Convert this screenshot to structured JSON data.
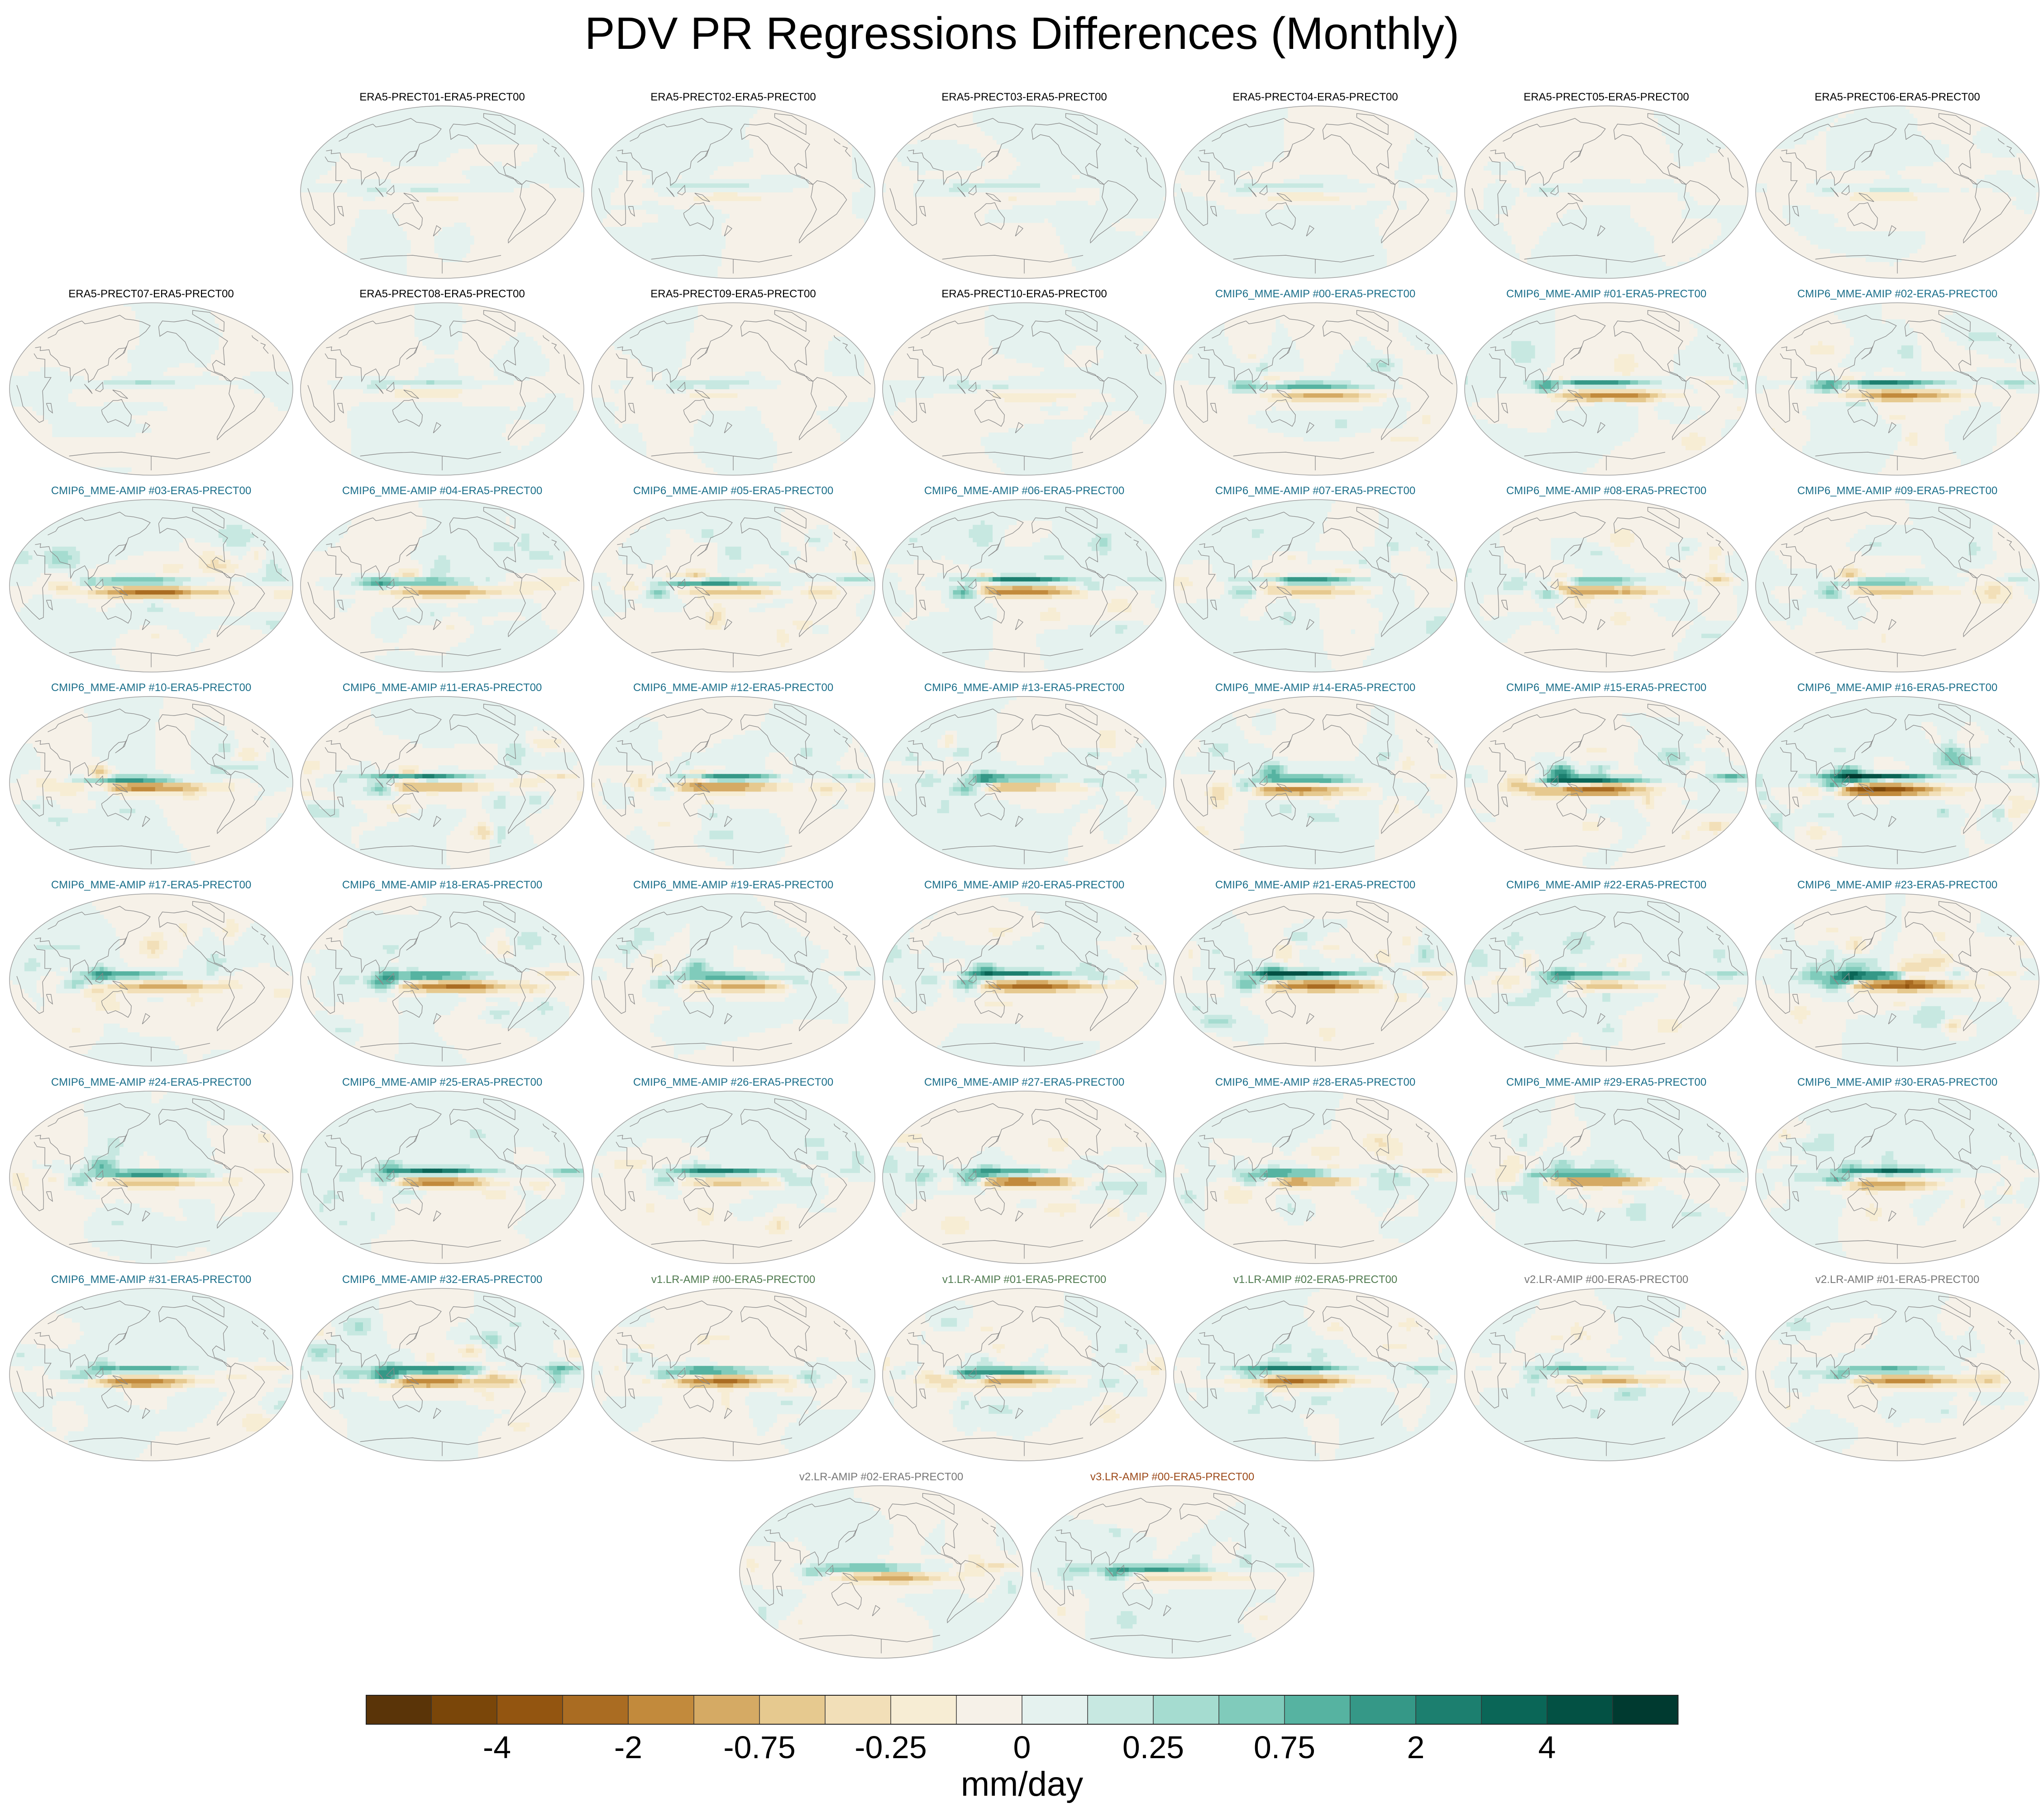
{
  "chart_data": {
    "type": "heatmap",
    "title": "PDV PR Regressions Differences (Monthly)",
    "panels": [
      {
        "label": "ERA5-PRECT01-ERA5-PRECT00",
        "group": "era5",
        "title_color": "#000000",
        "amp": 0.12
      },
      {
        "label": "ERA5-PRECT02-ERA5-PRECT00",
        "group": "era5",
        "title_color": "#000000",
        "amp": 0.12
      },
      {
        "label": "ERA5-PRECT03-ERA5-PRECT00",
        "group": "era5",
        "title_color": "#000000",
        "amp": 0.12
      },
      {
        "label": "ERA5-PRECT04-ERA5-PRECT00",
        "group": "era5",
        "title_color": "#000000",
        "amp": 0.12
      },
      {
        "label": "ERA5-PRECT05-ERA5-PRECT00",
        "group": "era5",
        "title_color": "#000000",
        "amp": 0.12
      },
      {
        "label": "ERA5-PRECT06-ERA5-PRECT00",
        "group": "era5",
        "title_color": "#000000",
        "amp": 0.12
      },
      {
        "label": "ERA5-PRECT07-ERA5-PRECT00",
        "group": "era5",
        "title_color": "#000000",
        "amp": 0.12
      },
      {
        "label": "ERA5-PRECT08-ERA5-PRECT00",
        "group": "era5",
        "title_color": "#000000",
        "amp": 0.12
      },
      {
        "label": "ERA5-PRECT09-ERA5-PRECT00",
        "group": "era5",
        "title_color": "#000000",
        "amp": 0.12
      },
      {
        "label": "ERA5-PRECT10-ERA5-PRECT00",
        "group": "era5",
        "title_color": "#000000",
        "amp": 0.12
      },
      {
        "label": "CMIP6_MME-AMIP  #00-ERA5-PRECT00",
        "group": "cmip6",
        "title_color": "#1a6e8a",
        "amp": 0.5
      },
      {
        "label": "CMIP6_MME-AMIP  #01-ERA5-PRECT00",
        "group": "cmip6",
        "title_color": "#1a6e8a",
        "amp": 0.5
      },
      {
        "label": "CMIP6_MME-AMIP  #02-ERA5-PRECT00",
        "group": "cmip6",
        "title_color": "#1a6e8a",
        "amp": 0.6
      },
      {
        "label": "CMIP6_MME-AMIP  #03-ERA5-PRECT00",
        "group": "cmip6",
        "title_color": "#1a6e8a",
        "amp": 0.6
      },
      {
        "label": "CMIP6_MME-AMIP  #04-ERA5-PRECT00",
        "group": "cmip6",
        "title_color": "#1a6e8a",
        "amp": 0.5
      },
      {
        "label": "CMIP6_MME-AMIP  #05-ERA5-PRECT00",
        "group": "cmip6",
        "title_color": "#1a6e8a",
        "amp": 0.6
      },
      {
        "label": "CMIP6_MME-AMIP  #06-ERA5-PRECT00",
        "group": "cmip6",
        "title_color": "#1a6e8a",
        "amp": 0.65
      },
      {
        "label": "CMIP6_MME-AMIP  #07-ERA5-PRECT00",
        "group": "cmip6",
        "title_color": "#1a6e8a",
        "amp": 0.5
      },
      {
        "label": "CMIP6_MME-AMIP  #08-ERA5-PRECT00",
        "group": "cmip6",
        "title_color": "#1a6e8a",
        "amp": 0.5
      },
      {
        "label": "CMIP6_MME-AMIP  #09-ERA5-PRECT00",
        "group": "cmip6",
        "title_color": "#1a6e8a",
        "amp": 0.5
      },
      {
        "label": "CMIP6_MME-AMIP  #10-ERA5-PRECT00",
        "group": "cmip6",
        "title_color": "#1a6e8a",
        "amp": 0.55
      },
      {
        "label": "CMIP6_MME-AMIP  #11-ERA5-PRECT00",
        "group": "cmip6",
        "title_color": "#1a6e8a",
        "amp": 0.6
      },
      {
        "label": "CMIP6_MME-AMIP  #12-ERA5-PRECT00",
        "group": "cmip6",
        "title_color": "#1a6e8a",
        "amp": 0.5
      },
      {
        "label": "CMIP6_MME-AMIP  #13-ERA5-PRECT00",
        "group": "cmip6",
        "title_color": "#1a6e8a",
        "amp": 0.55
      },
      {
        "label": "CMIP6_MME-AMIP  #14-ERA5-PRECT00",
        "group": "cmip6",
        "title_color": "#1a6e8a",
        "amp": 0.5
      },
      {
        "label": "CMIP6_MME-AMIP  #15-ERA5-PRECT00",
        "group": "cmip6",
        "title_color": "#1a6e8a",
        "amp": 0.9
      },
      {
        "label": "CMIP6_MME-AMIP  #16-ERA5-PRECT00",
        "group": "cmip6",
        "title_color": "#1a6e8a",
        "amp": 0.9
      },
      {
        "label": "CMIP6_MME-AMIP  #17-ERA5-PRECT00",
        "group": "cmip6",
        "title_color": "#1a6e8a",
        "amp": 0.55
      },
      {
        "label": "CMIP6_MME-AMIP  #18-ERA5-PRECT00",
        "group": "cmip6",
        "title_color": "#1a6e8a",
        "amp": 0.6
      },
      {
        "label": "CMIP6_MME-AMIP  #19-ERA5-PRECT00",
        "group": "cmip6",
        "title_color": "#1a6e8a",
        "amp": 0.5
      },
      {
        "label": "CMIP6_MME-AMIP  #20-ERA5-PRECT00",
        "group": "cmip6",
        "title_color": "#1a6e8a",
        "amp": 0.6
      },
      {
        "label": "CMIP6_MME-AMIP  #21-ERA5-PRECT00",
        "group": "cmip6",
        "title_color": "#1a6e8a",
        "amp": 0.8
      },
      {
        "label": "CMIP6_MME-AMIP  #22-ERA5-PRECT00",
        "group": "cmip6",
        "title_color": "#1a6e8a",
        "amp": 0.55
      },
      {
        "label": "CMIP6_MME-AMIP  #23-ERA5-PRECT00",
        "group": "cmip6",
        "title_color": "#1a6e8a",
        "amp": 0.8
      },
      {
        "label": "CMIP6_MME-AMIP  #24-ERA5-PRECT00",
        "group": "cmip6",
        "title_color": "#1a6e8a",
        "amp": 0.6
      },
      {
        "label": "CMIP6_MME-AMIP  #25-ERA5-PRECT00",
        "group": "cmip6",
        "title_color": "#1a6e8a",
        "amp": 0.6
      },
      {
        "label": "CMIP6_MME-AMIP  #26-ERA5-PRECT00",
        "group": "cmip6",
        "title_color": "#1a6e8a",
        "amp": 0.5
      },
      {
        "label": "CMIP6_MME-AMIP  #27-ERA5-PRECT00",
        "group": "cmip6",
        "title_color": "#1a6e8a",
        "amp": 0.6
      },
      {
        "label": "CMIP6_MME-AMIP  #28-ERA5-PRECT00",
        "group": "cmip6",
        "title_color": "#1a6e8a",
        "amp": 0.55
      },
      {
        "label": "CMIP6_MME-AMIP  #29-ERA5-PRECT00",
        "group": "cmip6",
        "title_color": "#1a6e8a",
        "amp": 0.55
      },
      {
        "label": "CMIP6_MME-AMIP  #30-ERA5-PRECT00",
        "group": "cmip6",
        "title_color": "#1a6e8a",
        "amp": 0.6
      },
      {
        "label": "CMIP6_MME-AMIP  #31-ERA5-PRECT00",
        "group": "cmip6",
        "title_color": "#1a6e8a",
        "amp": 0.55
      },
      {
        "label": "CMIP6_MME-AMIP  #32-ERA5-PRECT00",
        "group": "cmip6",
        "title_color": "#1a6e8a",
        "amp": 0.85
      },
      {
        "label": "v1.LR-AMIP  #00-ERA5-PRECT00",
        "group": "v1",
        "title_color": "#4f7a4f",
        "amp": 0.55
      },
      {
        "label": "v1.LR-AMIP  #01-ERA5-PRECT00",
        "group": "v1",
        "title_color": "#4f7a4f",
        "amp": 0.55
      },
      {
        "label": "v1.LR-AMIP  #02-ERA5-PRECT00",
        "group": "v1",
        "title_color": "#4f7a4f",
        "amp": 0.55
      },
      {
        "label": "v2.LR-AMIP  #00-ERA5-PRECT00",
        "group": "v2",
        "title_color": "#777777",
        "amp": 0.45
      },
      {
        "label": "v2.LR-AMIP  #01-ERA5-PRECT00",
        "group": "v2",
        "title_color": "#777777",
        "amp": 0.45
      },
      {
        "label": "v2.LR-AMIP  #02-ERA5-PRECT00",
        "group": "v2",
        "title_color": "#777777",
        "amp": 0.45
      },
      {
        "label": "v3.LR-AMIP  #00-ERA5-PRECT00",
        "group": "v3",
        "title_color": "#9c4a1a",
        "amp": 0.45
      }
    ],
    "colorbar": {
      "units": "mm/day",
      "tick_labels": [
        "-4",
        "-2",
        "-0.75",
        "-0.25",
        "0",
        "0.25",
        "0.75",
        "2",
        "4"
      ],
      "tick_bin_edges": [
        2,
        4,
        6,
        8,
        10,
        12,
        14,
        16,
        18
      ],
      "colors": [
        "#5a3408",
        "#7a4609",
        "#935510",
        "#aa6c22",
        "#c28a3c",
        "#d5aa64",
        "#e6c98f",
        "#f2dfb8",
        "#f7edd4",
        "#f6f1e8",
        "#e5f2ef",
        "#c7e8e1",
        "#a5dcd0",
        "#80cbbb",
        "#56b3a1",
        "#359887",
        "#1c7f6f",
        "#0a6657",
        "#035144",
        "#003a30"
      ]
    }
  }
}
